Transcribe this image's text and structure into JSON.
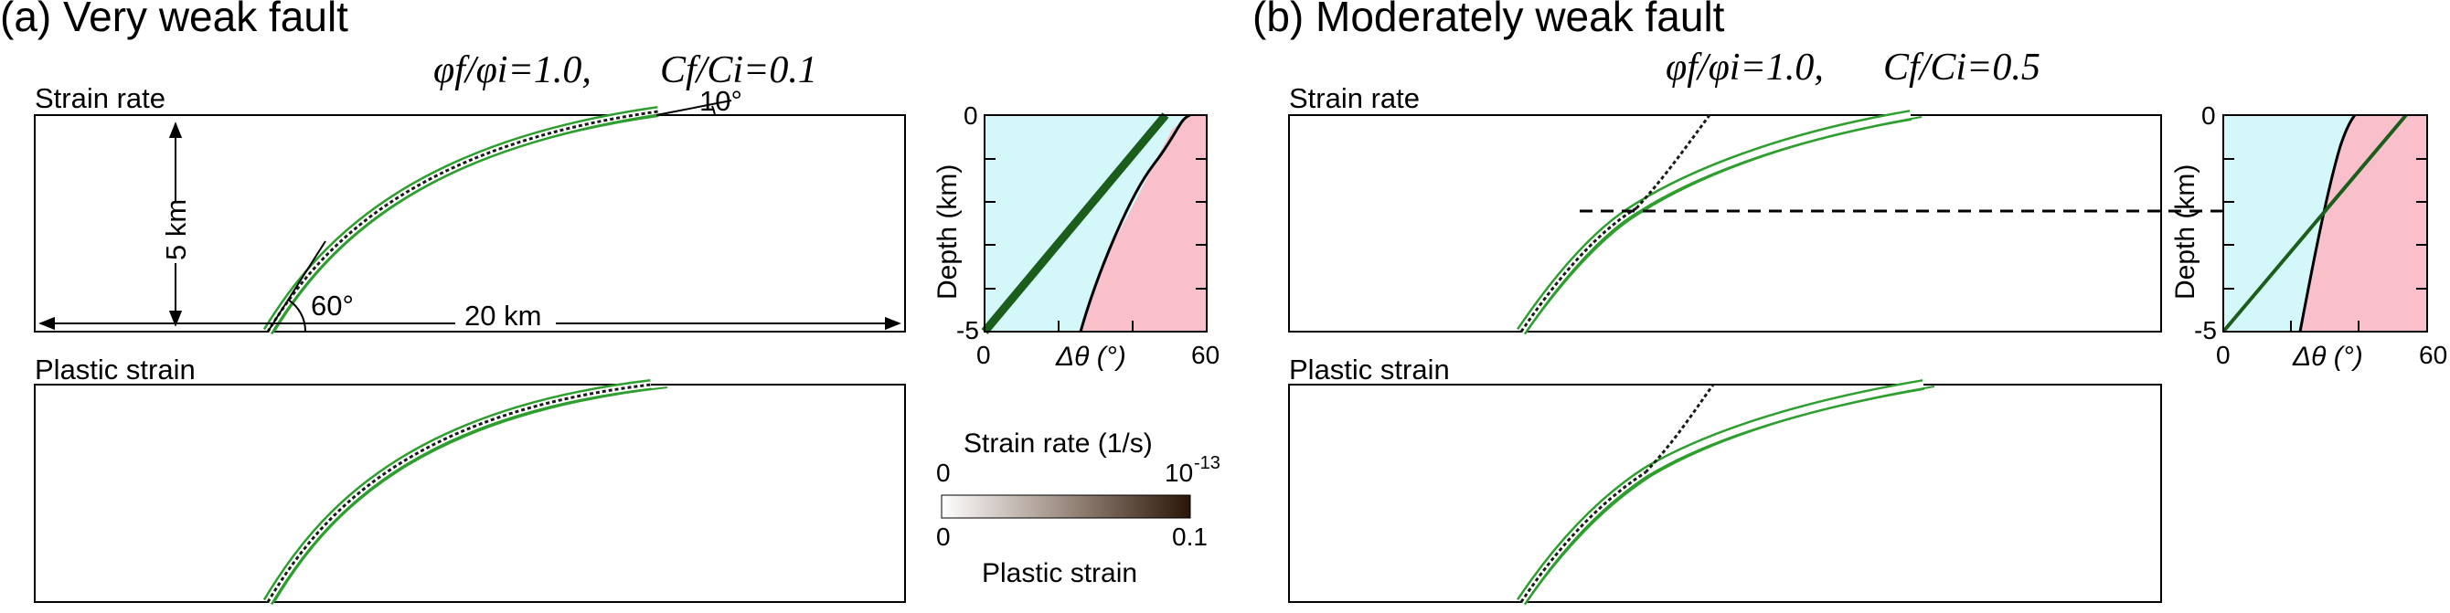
{
  "panels": [
    {
      "title": "(a) Very weak fault",
      "ratio_phi": "φf/φi=1.0,",
      "ratio_c": "Cf/Ci=0.1",
      "strain_rate_label": "Strain rate",
      "plastic_strain_label": "Plastic strain",
      "depth_dim_label": "5 km",
      "width_dim_label": "20 km",
      "dip_angle_label": "60°",
      "surface_angle_label": "10°",
      "inset": {
        "ylabel": "Depth (km)",
        "xlabel": "Δθ (°)",
        "yticks": [
          "0",
          "-5"
        ],
        "xticks": [
          "0",
          "60"
        ]
      }
    },
    {
      "title": "(b) Moderately weak fault",
      "ratio_phi": "φf/φi=1.0,",
      "ratio_c": "Cf/Ci=0.5",
      "strain_rate_label": "Strain rate",
      "plastic_strain_label": "Plastic strain",
      "inset": {
        "ylabel": "Depth (km)",
        "xlabel": "Δθ (°)",
        "yticks": [
          "0",
          "-5"
        ],
        "xticks": [
          "0",
          "60"
        ]
      }
    }
  ],
  "colorbar": {
    "title": "Strain rate (1/s)",
    "top_min": "0",
    "top_max_base": "10",
    "top_max_exp": "-13",
    "bottom_min": "0",
    "bottom_max": "0.1",
    "bottom_title": "Plastic strain"
  },
  "colors": {
    "fault_green": "#2e9e2e",
    "line_dark_green": "#1b5e1b",
    "stable_cyan": "#d4f8fa",
    "unstable_pink": "#f9c0cc",
    "colorbar_dark": "#2a1608"
  }
}
